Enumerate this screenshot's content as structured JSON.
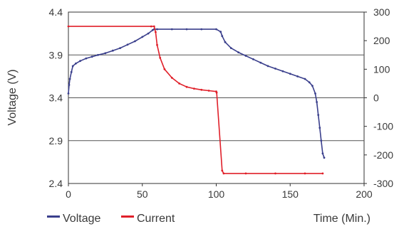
{
  "chart_data": {
    "type": "line",
    "xlabel": "Time (Min.)",
    "ylabel": "Voltage (V)",
    "y2label": "",
    "xlim": [
      0,
      200
    ],
    "ylim": [
      2.4,
      4.4
    ],
    "y2lim": [
      -300,
      300
    ],
    "x_ticks": [
      0,
      50,
      100,
      150,
      200
    ],
    "y_ticks": [
      2.4,
      2.9,
      3.4,
      3.9,
      4.4
    ],
    "y2_ticks": [
      -300,
      -200,
      -100,
      0,
      100,
      200,
      300
    ],
    "grid": "horizontal",
    "legend": "bottom-left",
    "series": [
      {
        "name": "Voltage",
        "axis": "left",
        "color": "#3a3f8c",
        "x": [
          0,
          0.5,
          1,
          2,
          3,
          5,
          8,
          12,
          16,
          20,
          25,
          30,
          35,
          40,
          45,
          50,
          54,
          57,
          58,
          60,
          70,
          80,
          90,
          100,
          103,
          104,
          106,
          110,
          115,
          120,
          125,
          130,
          135,
          140,
          145,
          150,
          155,
          160,
          163,
          165,
          167,
          168,
          169,
          170,
          171,
          172,
          173
        ],
        "values": [
          3.45,
          3.55,
          3.62,
          3.7,
          3.77,
          3.8,
          3.83,
          3.86,
          3.88,
          3.9,
          3.92,
          3.95,
          3.98,
          4.02,
          4.06,
          4.11,
          4.15,
          4.19,
          4.2,
          4.2,
          4.2,
          4.2,
          4.2,
          4.2,
          4.17,
          4.12,
          4.05,
          3.98,
          3.93,
          3.89,
          3.85,
          3.81,
          3.77,
          3.74,
          3.71,
          3.68,
          3.65,
          3.62,
          3.58,
          3.54,
          3.45,
          3.35,
          3.2,
          3.05,
          2.9,
          2.75,
          2.7
        ]
      },
      {
        "name": "Current",
        "axis": "right",
        "color": "#e0202a",
        "x": [
          0,
          56,
          58,
          59,
          60,
          62,
          65,
          70,
          75,
          80,
          85,
          90,
          95,
          100,
          100.3,
          104,
          105,
          120,
          140,
          160,
          172
        ],
        "values": [
          250,
          250,
          250,
          230,
          185,
          140,
          100,
          70,
          50,
          38,
          32,
          28,
          25,
          22,
          18,
          -255,
          -265,
          -265,
          -265,
          -265,
          -265
        ]
      }
    ]
  }
}
